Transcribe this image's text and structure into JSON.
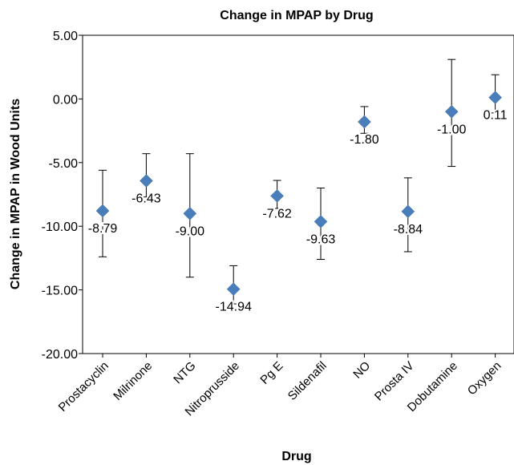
{
  "chart_data": {
    "type": "scatter",
    "title": "Change in MPAP by Drug",
    "xlabel": "Drug",
    "ylabel": "Change in MPAP in Wood Units",
    "ylim": [
      -20,
      5
    ],
    "yticks": [
      5,
      0,
      -5,
      -10,
      -15,
      -20
    ],
    "ytick_labels": [
      "5.00",
      "0.00",
      "-5.00",
      "-10.00",
      "-15.00",
      "-20.00"
    ],
    "grid": false,
    "legend": "none",
    "marker": "diamond",
    "marker_color": "#4a7ebb",
    "error_bar_color": "#000000",
    "categories": [
      "Prostacyclin",
      "Milrinone",
      "NTG",
      "Nitroprusside",
      "Pg E",
      "Sildenafil",
      "NO",
      "Prosta IV",
      "Dobutamine",
      "Oxygen"
    ],
    "values": [
      -8.79,
      -6.43,
      -9.0,
      -14.94,
      -7.62,
      -9.63,
      -1.8,
      -8.84,
      -1.0,
      0.11
    ],
    "value_labels": [
      "-8.79",
      "-6.43",
      "-9.00",
      "-14.94",
      "-7.62",
      "-9.63",
      "-1.80",
      "-8.84",
      "-1.00",
      "0.11"
    ],
    "error_low": [
      -12.4,
      -7.7,
      -14.0,
      -16.1,
      -8.6,
      -12.6,
      -2.7,
      -12.0,
      -5.3,
      -1.1
    ],
    "error_high": [
      -5.6,
      -4.3,
      -4.3,
      -13.1,
      -6.4,
      -7.0,
      -0.6,
      -6.2,
      3.1,
      1.9
    ]
  }
}
